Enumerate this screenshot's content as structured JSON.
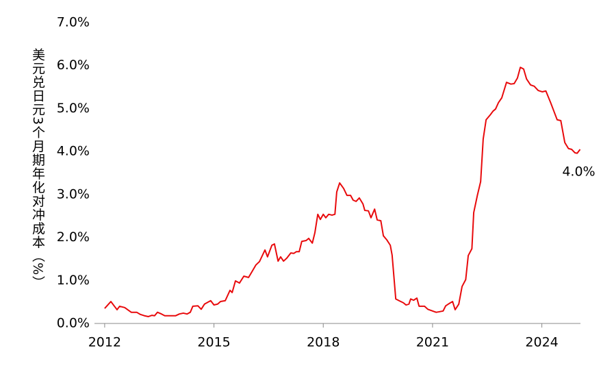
{
  "chart_data": {
    "type": "line",
    "y_label": "美元兑日元3个月期年化对冲成本（%）",
    "end_label": "4.0%",
    "x": [
      2012.0,
      2012.17,
      2012.34,
      2012.41,
      2012.55,
      2012.73,
      2012.88,
      2012.98,
      2013.09,
      2013.2,
      2013.3,
      2013.37,
      2013.45,
      2013.56,
      2013.65,
      2013.82,
      2013.95,
      2014.05,
      2014.16,
      2014.26,
      2014.35,
      2014.42,
      2014.56,
      2014.65,
      2014.74,
      2014.91,
      2015.0,
      2015.1,
      2015.18,
      2015.31,
      2015.44,
      2015.5,
      2015.59,
      2015.7,
      2015.82,
      2015.95,
      2016.04,
      2016.15,
      2016.25,
      2016.4,
      2016.47,
      2016.59,
      2016.66,
      2016.76,
      2016.83,
      2016.91,
      2017.0,
      2017.11,
      2017.19,
      2017.26,
      2017.34,
      2017.41,
      2017.53,
      2017.6,
      2017.7,
      2017.77,
      2017.85,
      2017.92,
      2018.0,
      2018.07,
      2018.15,
      2018.24,
      2018.32,
      2018.37,
      2018.45,
      2018.56,
      2018.65,
      2018.75,
      2018.82,
      2018.9,
      2018.99,
      2019.09,
      2019.14,
      2019.24,
      2019.31,
      2019.41,
      2019.48,
      2019.58,
      2019.65,
      2019.74,
      2019.84,
      2019.89,
      2019.99,
      2020.08,
      2020.2,
      2020.27,
      2020.35,
      2020.4,
      2020.48,
      2020.57,
      2020.63,
      2020.78,
      2020.87,
      2021.0,
      2021.1,
      2021.17,
      2021.29,
      2021.36,
      2021.45,
      2021.55,
      2021.62,
      2021.72,
      2021.81,
      2021.91,
      2021.98,
      2022.08,
      2022.13,
      2022.23,
      2022.32,
      2022.39,
      2022.47,
      2022.58,
      2022.66,
      2022.73,
      2022.81,
      2022.9,
      2023.03,
      2023.15,
      2023.24,
      2023.33,
      2023.41,
      2023.5,
      2023.58,
      2023.69,
      2023.79,
      2023.9,
      2024.01,
      2024.11,
      2024.24,
      2024.33,
      2024.42,
      2024.52,
      2024.63,
      2024.73,
      2024.82,
      2024.91,
      2024.97,
      2025.05
    ],
    "series": [
      {
        "name": "美元兑日元3个月期年化对冲成本",
        "color": "#e8090b",
        "values": [
          0.35,
          0.51,
          0.32,
          0.4,
          0.37,
          0.26,
          0.26,
          0.21,
          0.18,
          0.16,
          0.19,
          0.18,
          0.26,
          0.22,
          0.18,
          0.18,
          0.18,
          0.22,
          0.24,
          0.22,
          0.26,
          0.4,
          0.41,
          0.33,
          0.45,
          0.53,
          0.43,
          0.45,
          0.51,
          0.53,
          0.77,
          0.72,
          0.99,
          0.94,
          1.1,
          1.07,
          1.2,
          1.36,
          1.44,
          1.71,
          1.55,
          1.82,
          1.85,
          1.45,
          1.55,
          1.45,
          1.52,
          1.64,
          1.63,
          1.67,
          1.67,
          1.91,
          1.93,
          1.98,
          1.87,
          2.11,
          2.54,
          2.42,
          2.54,
          2.46,
          2.54,
          2.52,
          2.54,
          3.06,
          3.27,
          3.14,
          2.98,
          2.98,
          2.87,
          2.84,
          2.92,
          2.78,
          2.63,
          2.62,
          2.46,
          2.66,
          2.41,
          2.39,
          2.04,
          1.95,
          1.82,
          1.59,
          0.57,
          0.53,
          0.48,
          0.43,
          0.45,
          0.57,
          0.54,
          0.59,
          0.4,
          0.4,
          0.33,
          0.29,
          0.26,
          0.27,
          0.29,
          0.41,
          0.46,
          0.51,
          0.32,
          0.45,
          0.86,
          1.02,
          1.58,
          1.74,
          2.58,
          2.98,
          3.3,
          4.29,
          4.74,
          4.85,
          4.94,
          4.99,
          5.14,
          5.25,
          5.61,
          5.57,
          5.58,
          5.71,
          5.96,
          5.92,
          5.69,
          5.55,
          5.52,
          5.42,
          5.39,
          5.41,
          5.14,
          4.94,
          4.74,
          4.72,
          4.21,
          4.07,
          4.05,
          3.97,
          3.96,
          4.05
        ]
      }
    ],
    "xlim": [
      2011.72,
      2025.06
    ],
    "xticks": [
      2012,
      2015,
      2018,
      2021,
      2024
    ],
    "ylim": [
      0,
      7
    ],
    "yticks": [
      {
        "value": 0,
        "label": "0.0%"
      },
      {
        "value": 1,
        "label": "1.0%"
      },
      {
        "value": 2,
        "label": "2.0%"
      },
      {
        "value": 3,
        "label": "3.0%"
      },
      {
        "value": 4,
        "label": "4.0%"
      },
      {
        "value": 5,
        "label": "5.0%"
      },
      {
        "value": 6,
        "label": "6.0%"
      },
      {
        "value": 7,
        "label": "7.0%"
      }
    ],
    "grid": false
  }
}
